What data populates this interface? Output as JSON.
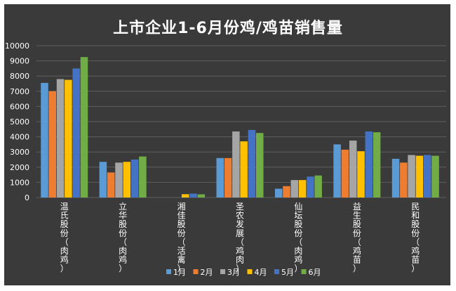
{
  "chart_data": {
    "type": "bar",
    "title": "上市企业1-6月份鸡/鸡苗销售量",
    "xlabel": "",
    "ylabel": "",
    "ylim": [
      0,
      10000
    ],
    "yticks": [
      0,
      1000,
      2000,
      3000,
      4000,
      5000,
      6000,
      7000,
      8000,
      9000,
      10000
    ],
    "grid": true,
    "legend": "bottom",
    "categories": [
      "温氏股份（肉鸡）",
      "立华股份（肉鸡）",
      "湘佳股份（活禽）",
      "圣农发展（鸡肉）",
      "仙坛股份（肉鸡）",
      "益生股份（鸡苗）",
      "民和股份（鸡苗）"
    ],
    "series": [
      {
        "name": "1月",
        "color": "#5b9bd5",
        "values": [
          7550,
          2350,
          0,
          2600,
          580,
          3500,
          2550
        ]
      },
      {
        "name": "2月",
        "color": "#ed7d31",
        "values": [
          7000,
          1650,
          0,
          2600,
          750,
          3150,
          2300
        ]
      },
      {
        "name": "3月",
        "color": "#a5a5a5",
        "values": [
          7800,
          2300,
          0,
          4350,
          1150,
          3750,
          2800
        ]
      },
      {
        "name": "4月",
        "color": "#ffc000",
        "values": [
          7750,
          2350,
          220,
          3700,
          1150,
          3050,
          2750
        ]
      },
      {
        "name": "5月",
        "color": "#4472c4",
        "values": [
          8500,
          2500,
          260,
          4450,
          1380,
          4350,
          2800
        ]
      },
      {
        "name": "6月",
        "color": "#70ad47",
        "values": [
          9250,
          2700,
          210,
          4250,
          1450,
          4300,
          2750
        ]
      }
    ]
  }
}
